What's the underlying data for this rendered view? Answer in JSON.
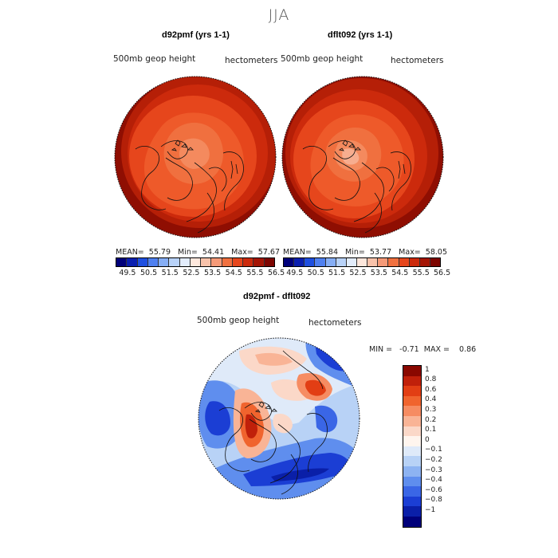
{
  "title": "JJA",
  "panel1": {
    "title": "d92pmf (yrs 1-1)",
    "var_label": "500mb geop height",
    "units": "hectometers",
    "stats": "MEAN=  55.79   Min=  54.41   Max=  57.67"
  },
  "panel2": {
    "title": "dflt092 (yrs 1-1)",
    "var_label": "500mb geop height",
    "units": "hectometers",
    "stats": "MEAN=  55.84   Min=  53.77   Max=  58.05"
  },
  "panel3": {
    "title": "d92pmf - dflt092",
    "var_label": "500mb geop height",
    "units": "hectometers",
    "stats": "MIN =   -0.71  MAX =    0.86"
  },
  "colorbar_top": {
    "colors": [
      "#00007a",
      "#0a1fb0",
      "#1e4fe0",
      "#4f80f0",
      "#86aef5",
      "#b8d2f8",
      "#e2ecfb",
      "#fde7dc",
      "#f8c2aa",
      "#f59a78",
      "#f0703f",
      "#e6461c",
      "#cc2a0c",
      "#a51505",
      "#7d0500"
    ],
    "labels": [
      "49.5",
      "50.5",
      "51.5",
      "52.5",
      "53.5",
      "54.5",
      "55.5",
      "56.5"
    ]
  },
  "colorbar_diff": {
    "colors": [
      "#8a0800",
      "#c0200a",
      "#e23e14",
      "#f0642e",
      "#f68c62",
      "#f9b496",
      "#fbd8c8",
      "#fff5ee",
      "#dfeaf9",
      "#b8d2f6",
      "#8db3f2",
      "#5f8eee",
      "#3a66e6",
      "#1b3ed4",
      "#0a1fa8",
      "#00007a"
    ],
    "labels": [
      "1",
      "0.8",
      "0.6",
      "0.4",
      "0.3",
      "0.2",
      "0.1",
      "0",
      "−0.1",
      "−0.2",
      "−0.3",
      "−0.4",
      "−0.6",
      "−0.8",
      "−1"
    ]
  }
}
